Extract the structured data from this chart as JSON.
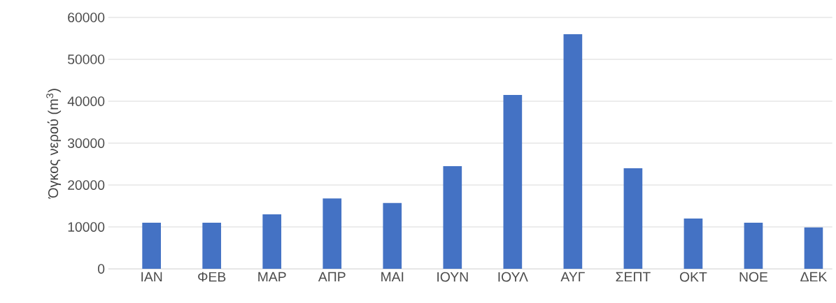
{
  "chart_data": {
    "type": "bar",
    "ylabel": "Όγκος νερού (m$^{3}$)",
    "categories": [
      "ΙΑΝ",
      "ΦΕΒ",
      "ΜΑΡ",
      "ΑΠΡ",
      "ΜΑΙ",
      "ΙΟΥΝ",
      "ΙΟΥΛ",
      "ΑΥΓ",
      "ΣΕΠΤ",
      "ΟΚΤ",
      "ΝΟΕ",
      "ΔΕΚ"
    ],
    "values": [
      11000,
      11000,
      13000,
      16800,
      15700,
      24500,
      41500,
      56000,
      24000,
      12000,
      11000,
      9900
    ],
    "color": "#4472c4",
    "ylim": [
      0,
      60000
    ],
    "yticks": [
      0,
      10000,
      20000,
      30000,
      40000,
      50000,
      60000
    ],
    "grid": "y"
  }
}
